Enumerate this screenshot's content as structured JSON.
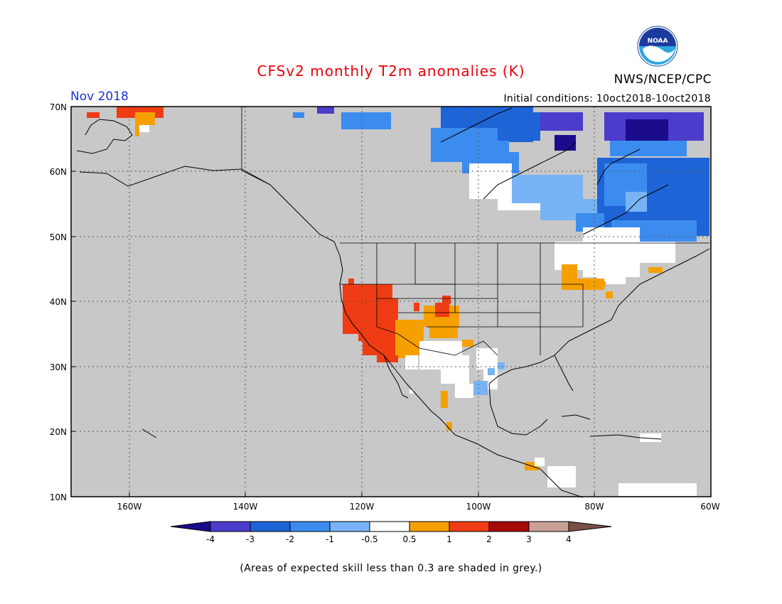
{
  "header": {
    "title": "CFSv2 monthly T2m anomalies (K)",
    "period": "Nov 2018",
    "initial_conditions": "Initial conditions: 10oct2018-10oct2018",
    "organization": "NWS/NCEP/CPC",
    "logo_text": "NOAA"
  },
  "map": {
    "lat_labels": [
      "70N",
      "60N",
      "50N",
      "40N",
      "30N",
      "20N",
      "10N"
    ],
    "lon_labels": [
      "160W",
      "140W",
      "120W",
      "100W",
      "80W",
      "60W"
    ],
    "background_color": "#c8c8c8",
    "grid": "dotted"
  },
  "colorbar": {
    "tick_labels": [
      "-4",
      "-3",
      "-2",
      "-1",
      "-0.5",
      "0.5",
      "1",
      "2",
      "3",
      "4"
    ],
    "colors": [
      "#1a0c8a",
      "#4b3ccc",
      "#1e64d6",
      "#3c8cf0",
      "#78b4f5",
      "#ffffff",
      "#f5a000",
      "#f03c14",
      "#a50a0a",
      "#c8a096",
      "#785046"
    ]
  },
  "footnote": "(Areas of expected skill less than 0.3 are shaded in grey.)"
}
